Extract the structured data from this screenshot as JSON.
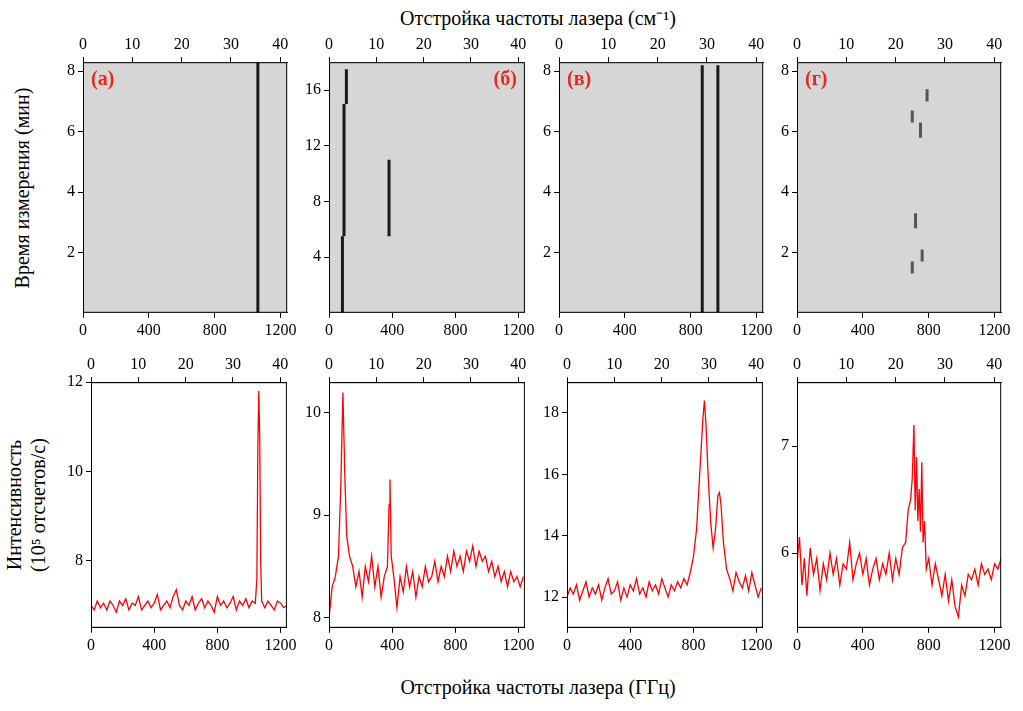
{
  "title_top": "Отстройка частоты лазера (см⁻¹)",
  "title_bottom": "Отстройка частоты лазера (ГГц)",
  "ylabel_top": "Время измерения (мин)",
  "ylabel_bottom": "Интенсивность (10⁵ отсчетов/с)",
  "chart_data": [
    {
      "type": "line",
      "panel": "(а)",
      "grid": false,
      "color": "#1a1a1a",
      "xlim": [
        0,
        1240
      ],
      "xticks": [
        0,
        400,
        800,
        1200
      ],
      "x2lim": [
        0,
        41.4
      ],
      "x2ticks": [
        0,
        10,
        20,
        30,
        40
      ],
      "ylim": [
        0,
        8.3
      ],
      "yticks": [
        2,
        4,
        6,
        8
      ],
      "series": [
        {
          "x": [
            1062,
            1062
          ],
          "values": [
            0,
            8.3
          ]
        }
      ]
    },
    {
      "type": "line",
      "panel": "(б)",
      "grid": false,
      "color": "#1a1a1a",
      "xlim": [
        0,
        1240
      ],
      "xticks": [
        0,
        400,
        800,
        1200
      ],
      "x2lim": [
        0,
        41.4
      ],
      "x2ticks": [
        0,
        10,
        20,
        30,
        40
      ],
      "ylim": [
        0,
        18
      ],
      "yticks": [
        4,
        8,
        12,
        16
      ],
      "series": [
        {
          "x": [
            85,
            85
          ],
          "values": [
            0,
            5.5
          ]
        },
        {
          "x": [
            95,
            95
          ],
          "values": [
            5.5,
            15
          ]
        },
        {
          "x": [
            110,
            110
          ],
          "values": [
            15,
            17.5
          ]
        },
        {
          "x": [
            380,
            380
          ],
          "values": [
            5.5,
            11
          ]
        }
      ]
    },
    {
      "type": "line",
      "panel": "(в)",
      "grid": false,
      "color": "#1a1a1a",
      "xlim": [
        0,
        1240
      ],
      "xticks": [
        0,
        400,
        800,
        1200
      ],
      "x2lim": [
        0,
        41.4
      ],
      "x2ticks": [
        0,
        10,
        20,
        30,
        40
      ],
      "ylim": [
        0,
        8.3
      ],
      "yticks": [
        2,
        4,
        6,
        8
      ],
      "series": [
        {
          "x": [
            870,
            870
          ],
          "values": [
            0,
            8.2
          ]
        },
        {
          "x": [
            965,
            965
          ],
          "values": [
            0,
            8.2
          ]
        }
      ]
    },
    {
      "type": "line",
      "panel": "(г)",
      "grid": false,
      "color": "#555555",
      "xlim": [
        0,
        1240
      ],
      "xticks": [
        0,
        400,
        800,
        1200
      ],
      "x2lim": [
        0,
        41.4
      ],
      "x2ticks": [
        0,
        10,
        20,
        30,
        40
      ],
      "ylim": [
        0,
        8.3
      ],
      "yticks": [
        2,
        4,
        6,
        8
      ],
      "series": [
        {
          "x": [
            700,
            700
          ],
          "values": [
            1.3,
            1.7
          ]
        },
        {
          "x": [
            760,
            760
          ],
          "values": [
            1.7,
            2.1
          ]
        },
        {
          "x": [
            720,
            720
          ],
          "values": [
            2.8,
            3.3
          ]
        },
        {
          "x": [
            750,
            750
          ],
          "values": [
            5.8,
            6.3
          ]
        },
        {
          "x": [
            700,
            700
          ],
          "values": [
            6.3,
            6.7
          ]
        },
        {
          "x": [
            790,
            790
          ],
          "values": [
            7,
            7.4
          ]
        }
      ]
    },
    {
      "type": "line",
      "grid": false,
      "color": "#ff0000",
      "xlim": [
        0,
        1240
      ],
      "xticks": [
        0,
        400,
        800,
        1200
      ],
      "x2lim": [
        0,
        41.4
      ],
      "x2ticks": [
        0,
        10,
        20,
        30,
        40
      ],
      "ylim": [
        6.5,
        12
      ],
      "yticks": [
        8,
        10,
        12
      ],
      "series": [
        {
          "x": [
            0,
            20,
            40,
            60,
            80,
            100,
            120,
            140,
            160,
            180,
            200,
            220,
            240,
            260,
            280,
            300,
            320,
            340,
            360,
            380,
            400,
            420,
            440,
            460,
            480,
            500,
            520,
            540,
            560,
            580,
            600,
            620,
            640,
            660,
            680,
            700,
            720,
            740,
            760,
            780,
            800,
            820,
            840,
            860,
            880,
            900,
            920,
            940,
            960,
            980,
            1000,
            1020,
            1040,
            1050,
            1056,
            1062,
            1068,
            1074,
            1080,
            1100,
            1120,
            1140,
            1160,
            1180,
            1200,
            1220,
            1240
          ],
          "values": [
            7.0,
            6.9,
            7.1,
            6.95,
            7.05,
            6.9,
            7.1,
            7.0,
            6.85,
            7.1,
            7.0,
            7.15,
            6.9,
            7.05,
            7.0,
            7.2,
            6.9,
            7.0,
            7.1,
            6.95,
            7.05,
            7.25,
            6.9,
            7.0,
            7.1,
            6.95,
            7.2,
            7.35,
            7.0,
            6.9,
            7.1,
            7.0,
            7.2,
            6.9,
            7.05,
            7.15,
            6.95,
            7.1,
            7.0,
            6.85,
            7.2,
            7.0,
            7.1,
            6.95,
            7.05,
            7.2,
            6.9,
            7.1,
            7.0,
            7.15,
            6.95,
            7.1,
            7.05,
            7.6,
            10.5,
            11.8,
            10.8,
            8.0,
            7.1,
            6.95,
            7.1,
            7.0,
            6.9,
            7.1,
            7.05,
            6.95,
            7.0
          ]
        }
      ]
    },
    {
      "type": "line",
      "grid": false,
      "color": "#ff0000",
      "xlim": [
        0,
        1240
      ],
      "xticks": [
        0,
        400,
        800,
        1200
      ],
      "x2lim": [
        0,
        41.4
      ],
      "x2ticks": [
        0,
        10,
        20,
        30,
        40
      ],
      "ylim": [
        7.9,
        10.3
      ],
      "yticks": [
        8,
        9,
        10
      ],
      "series": [
        {
          "x": [
            0,
            20,
            40,
            60,
            75,
            88,
            100,
            112,
            130,
            150,
            170,
            190,
            210,
            230,
            250,
            270,
            290,
            310,
            330,
            350,
            370,
            380,
            386,
            394,
            410,
            430,
            450,
            470,
            490,
            510,
            530,
            550,
            570,
            590,
            610,
            630,
            650,
            670,
            690,
            710,
            730,
            750,
            770,
            790,
            810,
            830,
            850,
            870,
            890,
            910,
            930,
            950,
            970,
            990,
            1010,
            1030,
            1050,
            1070,
            1090,
            1110,
            1130,
            1150,
            1170,
            1190,
            1210,
            1230
          ],
          "values": [
            8.0,
            8.3,
            8.4,
            8.6,
            9.3,
            10.2,
            9.4,
            8.8,
            8.6,
            8.5,
            8.3,
            8.45,
            8.2,
            8.5,
            8.35,
            8.6,
            8.3,
            8.5,
            8.2,
            8.4,
            8.5,
            9.1,
            9.35,
            8.6,
            8.4,
            8.1,
            8.4,
            8.25,
            8.5,
            8.3,
            8.45,
            8.2,
            8.4,
            8.3,
            8.5,
            8.35,
            8.4,
            8.55,
            8.35,
            8.5,
            8.4,
            8.6,
            8.45,
            8.65,
            8.5,
            8.6,
            8.45,
            8.65,
            8.55,
            8.7,
            8.5,
            8.65,
            8.55,
            8.6,
            8.45,
            8.55,
            8.4,
            8.5,
            8.35,
            8.45,
            8.3,
            8.45,
            8.35,
            8.4,
            8.3,
            8.4
          ]
        }
      ]
    },
    {
      "type": "line",
      "grid": false,
      "color": "#ff0000",
      "xlim": [
        0,
        1240
      ],
      "xticks": [
        0,
        400,
        800,
        1200
      ],
      "x2lim": [
        0,
        41.4
      ],
      "x2ticks": [
        0,
        10,
        20,
        30,
        40
      ],
      "ylim": [
        11,
        19
      ],
      "yticks": [
        12,
        14,
        16,
        18
      ],
      "series": [
        {
          "x": [
            0,
            20,
            40,
            60,
            80,
            100,
            120,
            140,
            160,
            180,
            200,
            220,
            240,
            260,
            280,
            300,
            320,
            340,
            360,
            380,
            400,
            420,
            440,
            460,
            480,
            500,
            520,
            540,
            560,
            580,
            600,
            620,
            640,
            660,
            680,
            700,
            720,
            740,
            760,
            780,
            800,
            820,
            840,
            860,
            870,
            880,
            895,
            910,
            925,
            940,
            955,
            965,
            975,
            990,
            1010,
            1030,
            1050,
            1070,
            1090,
            1110,
            1130,
            1150,
            1170,
            1190,
            1210,
            1230
          ],
          "values": [
            12.0,
            12.3,
            12.1,
            12.4,
            11.9,
            12.2,
            12.5,
            12.0,
            12.3,
            12.1,
            12.4,
            11.9,
            12.3,
            12.6,
            12.1,
            12.2,
            12.5,
            11.9,
            12.3,
            12.0,
            12.4,
            12.2,
            12.6,
            12.1,
            12.3,
            12.0,
            12.5,
            12.2,
            12.4,
            12.1,
            12.6,
            12.3,
            12.0,
            12.4,
            12.2,
            12.5,
            12.3,
            12.6,
            12.4,
            12.8,
            13.3,
            14.2,
            16.0,
            17.8,
            18.4,
            17.6,
            15.8,
            14.4,
            13.6,
            14.2,
            15.3,
            15.4,
            15.0,
            13.8,
            12.9,
            12.6,
            12.2,
            12.8,
            12.5,
            12.3,
            12.7,
            12.2,
            12.8,
            12.4,
            12.0,
            12.3
          ]
        }
      ]
    },
    {
      "type": "line",
      "grid": false,
      "color": "#ff0000",
      "xlim": [
        0,
        1240
      ],
      "xticks": [
        0,
        400,
        800,
        1200
      ],
      "x2lim": [
        0,
        41.4
      ],
      "x2ticks": [
        0,
        10,
        20,
        30,
        40
      ],
      "ylim": [
        5.3,
        7.6
      ],
      "yticks": [
        6,
        7
      ],
      "series": [
        {
          "x": [
            0,
            15,
            30,
            45,
            60,
            80,
            100,
            120,
            140,
            160,
            180,
            200,
            220,
            240,
            260,
            280,
            300,
            320,
            340,
            360,
            380,
            400,
            420,
            440,
            460,
            480,
            500,
            520,
            540,
            560,
            580,
            600,
            620,
            640,
            660,
            675,
            690,
            700,
            710,
            718,
            726,
            734,
            742,
            750,
            758,
            766,
            775,
            785,
            800,
            820,
            840,
            860,
            880,
            900,
            920,
            940,
            960,
            980,
            1000,
            1020,
            1040,
            1060,
            1080,
            1100,
            1120,
            1140,
            1160,
            1180,
            1200,
            1220,
            1240
          ],
          "values": [
            5.9,
            6.15,
            5.7,
            5.95,
            5.6,
            6.05,
            5.8,
            5.95,
            5.65,
            5.9,
            5.75,
            6.0,
            5.8,
            5.95,
            5.7,
            5.9,
            5.85,
            6.1,
            5.75,
            5.9,
            6.0,
            5.8,
            5.95,
            5.7,
            5.85,
            5.95,
            5.75,
            5.9,
            5.8,
            6.0,
            5.75,
            5.95,
            5.8,
            6.05,
            6.1,
            6.4,
            6.5,
            6.7,
            7.2,
            6.4,
            6.9,
            6.3,
            6.6,
            6.2,
            6.85,
            6.1,
            6.3,
            5.85,
            5.95,
            5.7,
            5.9,
            5.75,
            5.6,
            5.8,
            5.55,
            5.75,
            5.5,
            5.4,
            5.7,
            5.6,
            5.8,
            5.75,
            5.85,
            5.7,
            5.9,
            5.8,
            5.85,
            5.75,
            5.9,
            5.85,
            5.95
          ]
        }
      ]
    }
  ]
}
